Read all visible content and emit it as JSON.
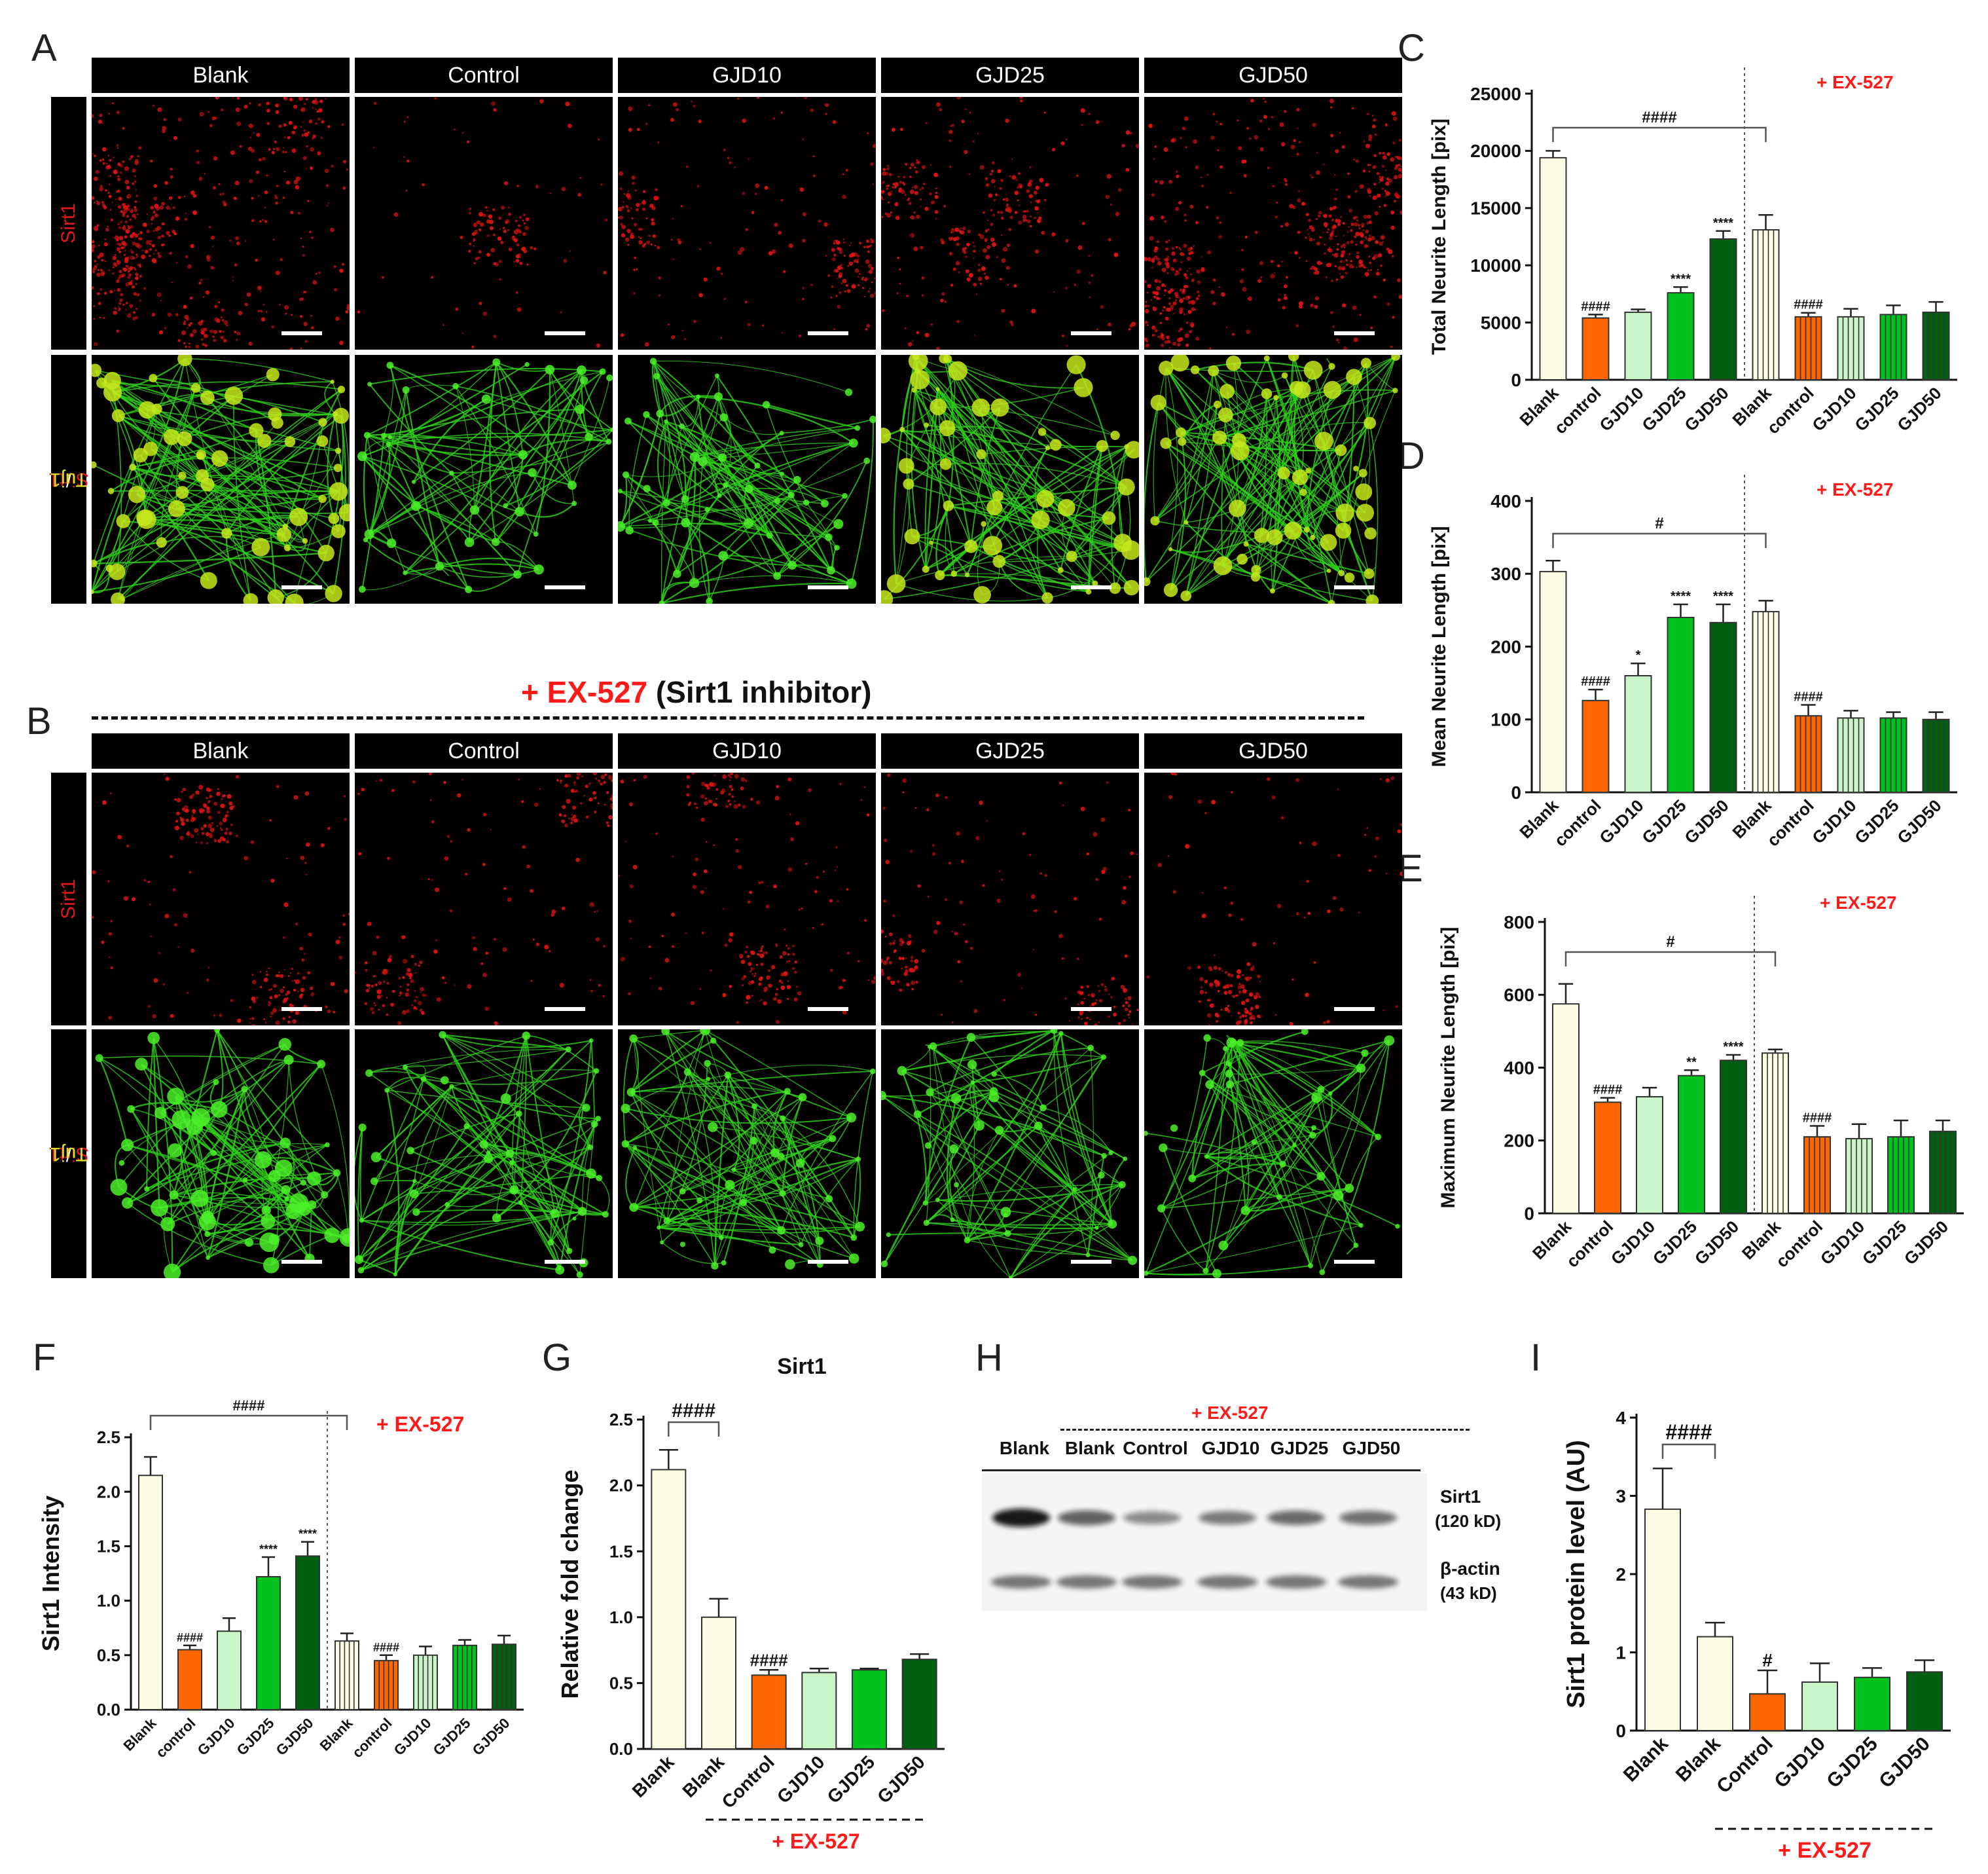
{
  "panels": {
    "A": "A",
    "B": "B",
    "C": "C",
    "D": "D",
    "E": "E",
    "F": "F",
    "G": "G",
    "H": "H",
    "I": "I"
  },
  "micro": {
    "columns": [
      "Blank",
      "Control",
      "GJD10",
      "GJD25",
      "GJD50"
    ],
    "row_sirt1": "Sirt1",
    "row_merge_red": "Sirt1",
    "row_merge_sep": "/ ",
    "row_merge_green": "Tuj1",
    "b_header_plus": "+ EX-527",
    "b_header_rest": " (Sirt1 inhibitor)"
  },
  "colors": {
    "ex527_red": "#ff1a1a",
    "blank_fill": "#fdfde6",
    "control_fill": "#ff6600",
    "gjd10_fill": "#c9f5c9",
    "gjd25_fill": "#00c21e",
    "gjd50_fill": "#005f10",
    "sirt1_red": "#e41818",
    "tuj1_green": "#3cdc1e"
  },
  "chart_data": [
    {
      "id": "C",
      "type": "bar",
      "ylabel": "Total Neurite Length [pix]",
      "ylim": [
        0,
        25000
      ],
      "yticks": [
        0,
        5000,
        10000,
        15000,
        20000,
        25000
      ],
      "annotation": "+ EX-527",
      "bracket_label": "####",
      "categories": [
        "Blank",
        "control",
        "GJD10",
        "GJD25",
        "GJD50",
        "Blank",
        "control",
        "GJD10",
        "GJD25",
        "GJD50"
      ],
      "values": [
        19400,
        5400,
        5900,
        7600,
        12300,
        13100,
        5500,
        5500,
        5700,
        5900
      ],
      "errors": [
        600,
        300,
        250,
        500,
        700,
        1300,
        350,
        700,
        800,
        900
      ],
      "marks": [
        "",
        "####",
        "",
        "****",
        "****",
        "",
        "####",
        "",
        "",
        ""
      ],
      "hatched": [
        false,
        false,
        false,
        false,
        false,
        true,
        true,
        true,
        true,
        true
      ]
    },
    {
      "id": "D",
      "type": "bar",
      "ylabel": "Mean Neurite Length [pix]",
      "ylim": [
        0,
        400
      ],
      "yticks": [
        0,
        100,
        200,
        300,
        400
      ],
      "annotation": "+ EX-527",
      "bracket_label": "#",
      "categories": [
        "Blank",
        "control",
        "GJD10",
        "GJD25",
        "GJD50",
        "Blank",
        "control",
        "GJD10",
        "GJD25",
        "GJD50"
      ],
      "values": [
        303,
        126,
        160,
        240,
        233,
        248,
        105,
        102,
        102,
        100
      ],
      "errors": [
        15,
        15,
        17,
        18,
        25,
        15,
        15,
        10,
        8,
        10
      ],
      "marks": [
        "",
        "####",
        "*",
        "****",
        "****",
        "",
        "####",
        "",
        "",
        ""
      ],
      "hatched": [
        false,
        false,
        false,
        false,
        false,
        true,
        true,
        true,
        true,
        true
      ]
    },
    {
      "id": "E",
      "type": "bar",
      "ylabel": "Maximum Neurite Length [pix]",
      "ylim": [
        0,
        800
      ],
      "yticks": [
        0,
        200,
        400,
        600,
        800
      ],
      "annotation": "+ EX-527",
      "bracket_label": "#",
      "categories": [
        "Blank",
        "control",
        "GJD10",
        "GJD25",
        "GJD50",
        "Blank",
        "control",
        "GJD10",
        "GJD25",
        "GJD50"
      ],
      "values": [
        575,
        305,
        320,
        378,
        420,
        440,
        210,
        205,
        210,
        225
      ],
      "errors": [
        55,
        12,
        25,
        15,
        15,
        10,
        30,
        40,
        45,
        30
      ],
      "marks": [
        "",
        "####",
        "",
        "**",
        "****",
        "",
        "####",
        "",
        "",
        ""
      ],
      "hatched": [
        false,
        false,
        false,
        false,
        false,
        true,
        true,
        true,
        true,
        true
      ]
    },
    {
      "id": "F",
      "type": "bar",
      "ylabel": "Sirt1 Intensity",
      "ylim": [
        0,
        2.5
      ],
      "yticks": [
        0.0,
        0.5,
        1.0,
        1.5,
        2.0,
        2.5
      ],
      "annotation": "+ EX-527",
      "bracket_label": "####",
      "categories": [
        "Blank",
        "control",
        "GJD10",
        "GJD25",
        "GJD50",
        "Blank",
        "control",
        "GJD10",
        "GJD25",
        "GJD50"
      ],
      "values": [
        2.15,
        0.55,
        0.72,
        1.22,
        1.41,
        0.63,
        0.45,
        0.5,
        0.59,
        0.6
      ],
      "errors": [
        0.17,
        0.04,
        0.12,
        0.18,
        0.13,
        0.07,
        0.05,
        0.08,
        0.05,
        0.08
      ],
      "marks": [
        "",
        "####",
        "",
        "****",
        "****",
        "",
        "####",
        "",
        "",
        ""
      ],
      "hatched": [
        false,
        false,
        false,
        false,
        false,
        true,
        true,
        true,
        true,
        true
      ]
    },
    {
      "id": "G",
      "type": "bar",
      "title": "Sirt1",
      "ylabel": "Relative fold change",
      "ylim": [
        0,
        2.5
      ],
      "yticks": [
        0.0,
        0.5,
        1.0,
        1.5,
        2.0,
        2.5
      ],
      "annotation": "+ EX-527",
      "bracket_label": "####",
      "categories": [
        "Blank",
        "Blank",
        "Control",
        "GJD10",
        "GJD25",
        "GJD50"
      ],
      "values": [
        2.12,
        1.0,
        0.56,
        0.58,
        0.6,
        0.68
      ],
      "errors": [
        0.15,
        0.14,
        0.04,
        0.03,
        0.01,
        0.04
      ],
      "marks": [
        "",
        "",
        "####",
        "",
        "",
        ""
      ]
    },
    {
      "id": "I",
      "type": "bar",
      "ylabel": "Sirt1 protein level (AU)",
      "ylim": [
        0,
        4
      ],
      "yticks": [
        0,
        1,
        2,
        3,
        4
      ],
      "annotation": "+ EX-527",
      "bracket_label": "####",
      "categories": [
        "Blank",
        "Blank",
        "Control",
        "GJD10",
        "GJD25",
        "GJD50"
      ],
      "values": [
        2.83,
        1.2,
        0.47,
        0.62,
        0.68,
        0.75
      ],
      "errors": [
        0.52,
        0.18,
        0.3,
        0.24,
        0.12,
        0.15
      ],
      "marks": [
        "",
        "",
        "#",
        "",
        "",
        ""
      ]
    }
  ],
  "western": {
    "ex_label": "+ EX-527",
    "lanes": [
      "Blank",
      "Blank",
      "Control",
      "GJD10",
      "GJD25",
      "GJD50"
    ],
    "sirt1_label": "Sirt1",
    "sirt1_kd": "(120 kD)",
    "actin_label": "β-actin",
    "actin_kd": "(43 kD)",
    "sirt1_intensity": [
      1.0,
      0.55,
      0.3,
      0.4,
      0.5,
      0.45
    ],
    "actin_intensity": [
      0.75,
      0.75,
      0.75,
      0.75,
      0.75,
      0.75
    ]
  }
}
